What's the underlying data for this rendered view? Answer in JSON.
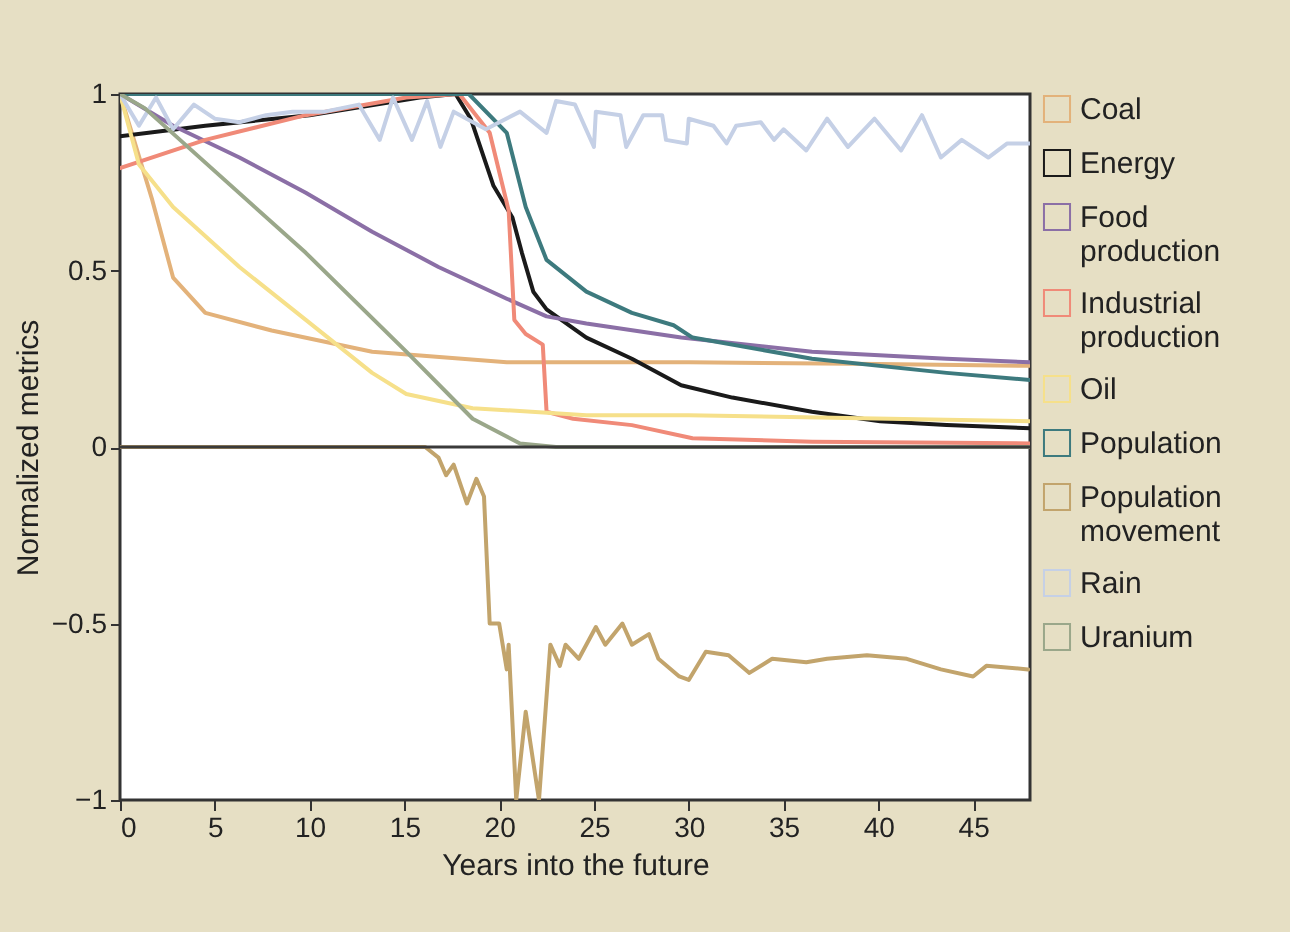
{
  "chart_data": {
    "type": "line",
    "xlabel": "Years into the future",
    "ylabel": "Normalized metrics",
    "xlim": [
      0,
      48
    ],
    "ylim": [
      -1,
      1
    ],
    "xticks": [
      0,
      5,
      10,
      15,
      20,
      25,
      30,
      35,
      40,
      45
    ],
    "yticks": [
      {
        "value": -1,
        "label": "−1"
      },
      {
        "value": -0.5,
        "label": "−0.5"
      },
      0,
      0.5,
      1
    ],
    "grid": false,
    "legend": "right",
    "marker": "none",
    "line_style": "solid",
    "ref_lines": [
      {
        "axis": "y",
        "value": 0,
        "color": "#3a3a3a"
      }
    ],
    "series": [
      {
        "name": "Coal",
        "color": "#e3b27a",
        "x": [
          0,
          1.7,
          2.8,
          4.5,
          8,
          13.3,
          20.4,
          30,
          40,
          48
        ],
        "values": [
          1,
          0.7,
          0.48,
          0.38,
          0.33,
          0.27,
          0.24,
          0.24,
          0.235,
          0.23
        ]
      },
      {
        "name": "Energy",
        "color": "#1a1a1a",
        "x": [
          0,
          4.5,
          10,
          15.8,
          17.7,
          18.5,
          19.7,
          20.7,
          21.2,
          21.8,
          22.5,
          24.6,
          27,
          29.6,
          32.3,
          36.5,
          40.1,
          43.6,
          48
        ],
        "values": [
          0.88,
          0.91,
          0.94,
          0.99,
          1,
          0.93,
          0.74,
          0.65,
          0.55,
          0.44,
          0.39,
          0.31,
          0.25,
          0.175,
          0.14,
          0.1,
          0.073,
          0.062,
          0.053
        ]
      },
      {
        "name": "Food production",
        "color": "#8b6fa6",
        "x": [
          0,
          2.8,
          6.3,
          9.8,
          13.3,
          16.8,
          20.4,
          22.5,
          24.6,
          29.6,
          36.5,
          43.6,
          48
        ],
        "values": [
          1,
          0.91,
          0.82,
          0.72,
          0.61,
          0.51,
          0.42,
          0.37,
          0.35,
          0.31,
          0.27,
          0.25,
          0.24
        ]
      },
      {
        "name": "Industrial production",
        "color": "#f08a78",
        "x": [
          0,
          4.5,
          9.8,
          15.1,
          17.9,
          19.5,
          20.5,
          20.8,
          21.4,
          22.3,
          22.5,
          23.9,
          27,
          30.2,
          36.5,
          48
        ],
        "values": [
          0.79,
          0.87,
          0.94,
          0.99,
          1,
          0.89,
          0.67,
          0.36,
          0.32,
          0.29,
          0.1,
          0.08,
          0.062,
          0.025,
          0.015,
          0.01
        ]
      },
      {
        "name": "Oil",
        "color": "#f6e08a",
        "x": [
          0,
          1,
          2.8,
          6.3,
          9.8,
          13.3,
          15.1,
          18.6,
          24.6,
          30,
          48
        ],
        "values": [
          1,
          0.8,
          0.68,
          0.51,
          0.36,
          0.21,
          0.15,
          0.11,
          0.09,
          0.09,
          0.073
        ]
      },
      {
        "name": "Population",
        "color": "#3d7a7e",
        "x": [
          0,
          18.4,
          20.4,
          21.4,
          22.5,
          24.6,
          27,
          29.2,
          30.2,
          36.5,
          43.6,
          48
        ],
        "values": [
          1,
          1,
          0.89,
          0.68,
          0.53,
          0.44,
          0.38,
          0.345,
          0.31,
          0.25,
          0.21,
          0.19
        ]
      },
      {
        "name": "Population movement",
        "color": "#c2a46c",
        "x": [
          0,
          16.1,
          16.8,
          17.2,
          17.6,
          18.3,
          18.8,
          19.2,
          19.5,
          20,
          20.4,
          20.5,
          20.9,
          21.4,
          22.1,
          22.7,
          23.2,
          23.5,
          24.2,
          25.1,
          25.6,
          26.5,
          27,
          27.9,
          28.4,
          29.5,
          30,
          30.9,
          32.1,
          33.2,
          34.4,
          36.2,
          37.3,
          39.4,
          41.5,
          43.3,
          45,
          45.7,
          47.9
        ],
        "values": [
          0,
          0,
          -0.03,
          -0.08,
          -0.05,
          -0.16,
          -0.09,
          -0.14,
          -0.5,
          -0.5,
          -0.63,
          -0.56,
          -1,
          -0.75,
          -1,
          -0.56,
          -0.62,
          -0.56,
          -0.6,
          -0.51,
          -0.56,
          -0.5,
          -0.56,
          -0.53,
          -0.6,
          -0.65,
          -0.66,
          -0.58,
          -0.59,
          -0.64,
          -0.6,
          -0.61,
          -0.6,
          -0.59,
          -0.6,
          -0.63,
          -0.65,
          -0.62,
          -0.63
        ]
      },
      {
        "name": "Rain",
        "color": "#c5d0e6",
        "x": [
          0,
          1,
          1.9,
          2.8,
          3.9,
          5,
          6.3,
          7.7,
          9.1,
          10.8,
          12.6,
          13.7,
          14.4,
          15.4,
          16.2,
          16.9,
          17.6,
          19.3,
          21.1,
          22.5,
          23,
          24,
          25,
          25.1,
          26.4,
          26.7,
          27.6,
          28.6,
          28.8,
          29.9,
          30,
          31.3,
          32,
          32.5,
          33.8,
          34.5,
          35,
          36.2,
          37.3,
          38.4,
          39.8,
          41.2,
          42.3,
          43.3,
          44.4,
          45.8,
          46.8,
          48
        ],
        "values": [
          1,
          0.91,
          0.99,
          0.9,
          0.97,
          0.93,
          0.92,
          0.94,
          0.95,
          0.95,
          0.97,
          0.87,
          0.99,
          0.87,
          0.98,
          0.85,
          0.95,
          0.9,
          0.95,
          0.89,
          0.98,
          0.97,
          0.85,
          0.95,
          0.94,
          0.85,
          0.94,
          0.94,
          0.87,
          0.86,
          0.93,
          0.91,
          0.86,
          0.91,
          0.92,
          0.87,
          0.9,
          0.84,
          0.93,
          0.85,
          0.93,
          0.84,
          0.94,
          0.82,
          0.87,
          0.82,
          0.86,
          0.86
        ]
      },
      {
        "name": "Uranium",
        "color": "#9aa78a",
        "x": [
          0,
          1.3,
          9.8,
          15.1,
          18.6,
          21.1,
          23,
          48
        ],
        "values": [
          1,
          0.96,
          0.55,
          0.27,
          0.08,
          0.01,
          0,
          0
        ]
      }
    ]
  }
}
